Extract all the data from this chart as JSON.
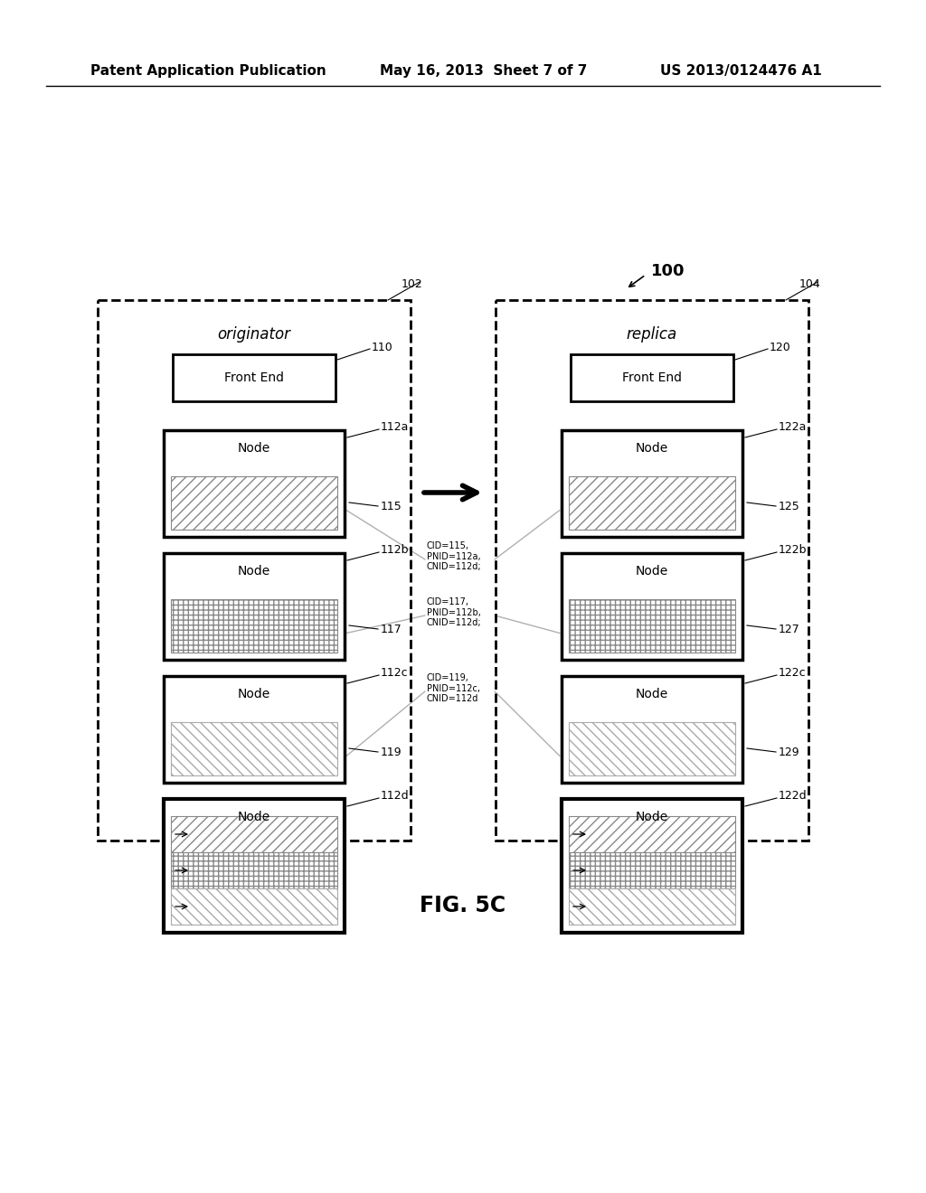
{
  "header_left": "Patent Application Publication",
  "header_mid": "May 16, 2013  Sheet 7 of 7",
  "header_right": "US 2013/0124476 A1",
  "fig_label": "FIG. 5C",
  "label_100": "100",
  "label_102": "102",
  "label_104": "104",
  "label_orig": "originator",
  "label_repl": "replica",
  "label_110": "110",
  "label_120": "120",
  "label_fe_orig": "Front End",
  "label_fe_repl": "Front End",
  "nodes_orig": [
    {
      "label": "112a",
      "data_label": "115",
      "type": "hatch_diagonal"
    },
    {
      "label": "112b",
      "data_label": "117",
      "type": "hatch_grid"
    },
    {
      "label": "112c",
      "data_label": "119",
      "type": "hatch_diag_light"
    },
    {
      "label": "112d",
      "data_label": "",
      "type": "combined3"
    }
  ],
  "nodes_repl": [
    {
      "label": "122a",
      "data_label": "125",
      "type": "hatch_diagonal"
    },
    {
      "label": "122b",
      "data_label": "127",
      "type": "hatch_grid"
    },
    {
      "label": "122c",
      "data_label": "129",
      "type": "hatch_diag_light"
    },
    {
      "label": "122d",
      "data_label": "",
      "type": "combined3"
    }
  ],
  "annotations": [
    "CID=115,\nPNID=112a,\nCNID=112d;",
    "CID=117,\nPNID=112b,\nCNID=112d;",
    "CID=119,\nPNID=112c,\nCNID=112d"
  ],
  "bg_color": "#ffffff"
}
